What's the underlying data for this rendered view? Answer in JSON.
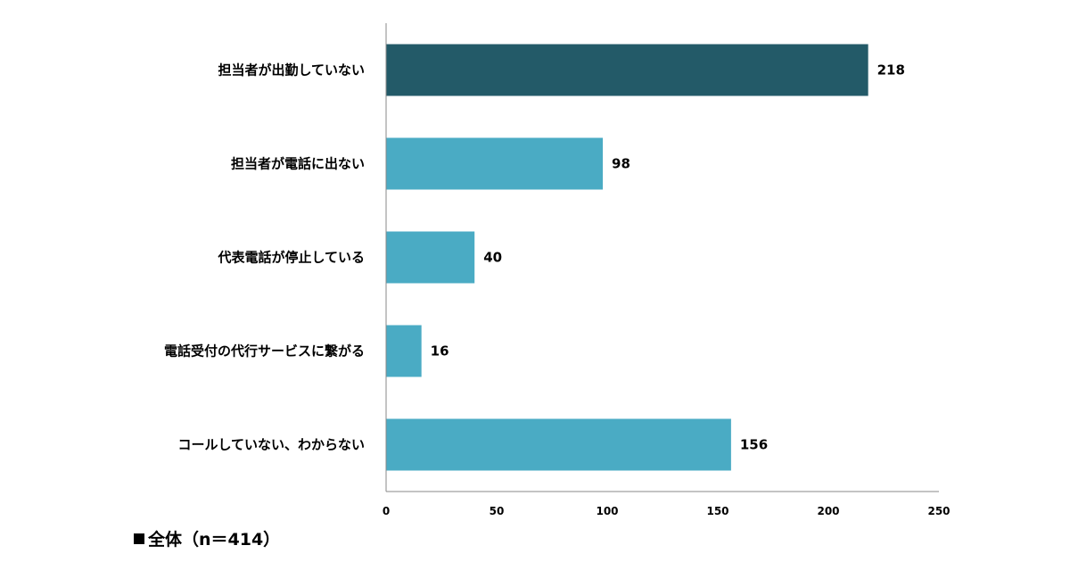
{
  "chart_data": {
    "type": "bar",
    "orientation": "horizontal",
    "categories": [
      "担当者が出勤していない",
      "担当者が電話に出ない",
      "代表電話が停止している",
      "電話受付の代行サービスに繋がる",
      "コールしていない、わからない"
    ],
    "values": [
      218,
      98,
      40,
      16,
      156
    ],
    "highlight_index": 0,
    "xlim": [
      0,
      250
    ],
    "xticks": [
      0,
      50,
      100,
      150,
      200,
      250
    ],
    "grid": false,
    "legend": "全体（n＝414）",
    "legend_placement": "bottom-left",
    "colors": {
      "highlight": "#235a68",
      "default": "#4aabc4",
      "axis": "#888888",
      "legend_marker": "#000000"
    }
  }
}
